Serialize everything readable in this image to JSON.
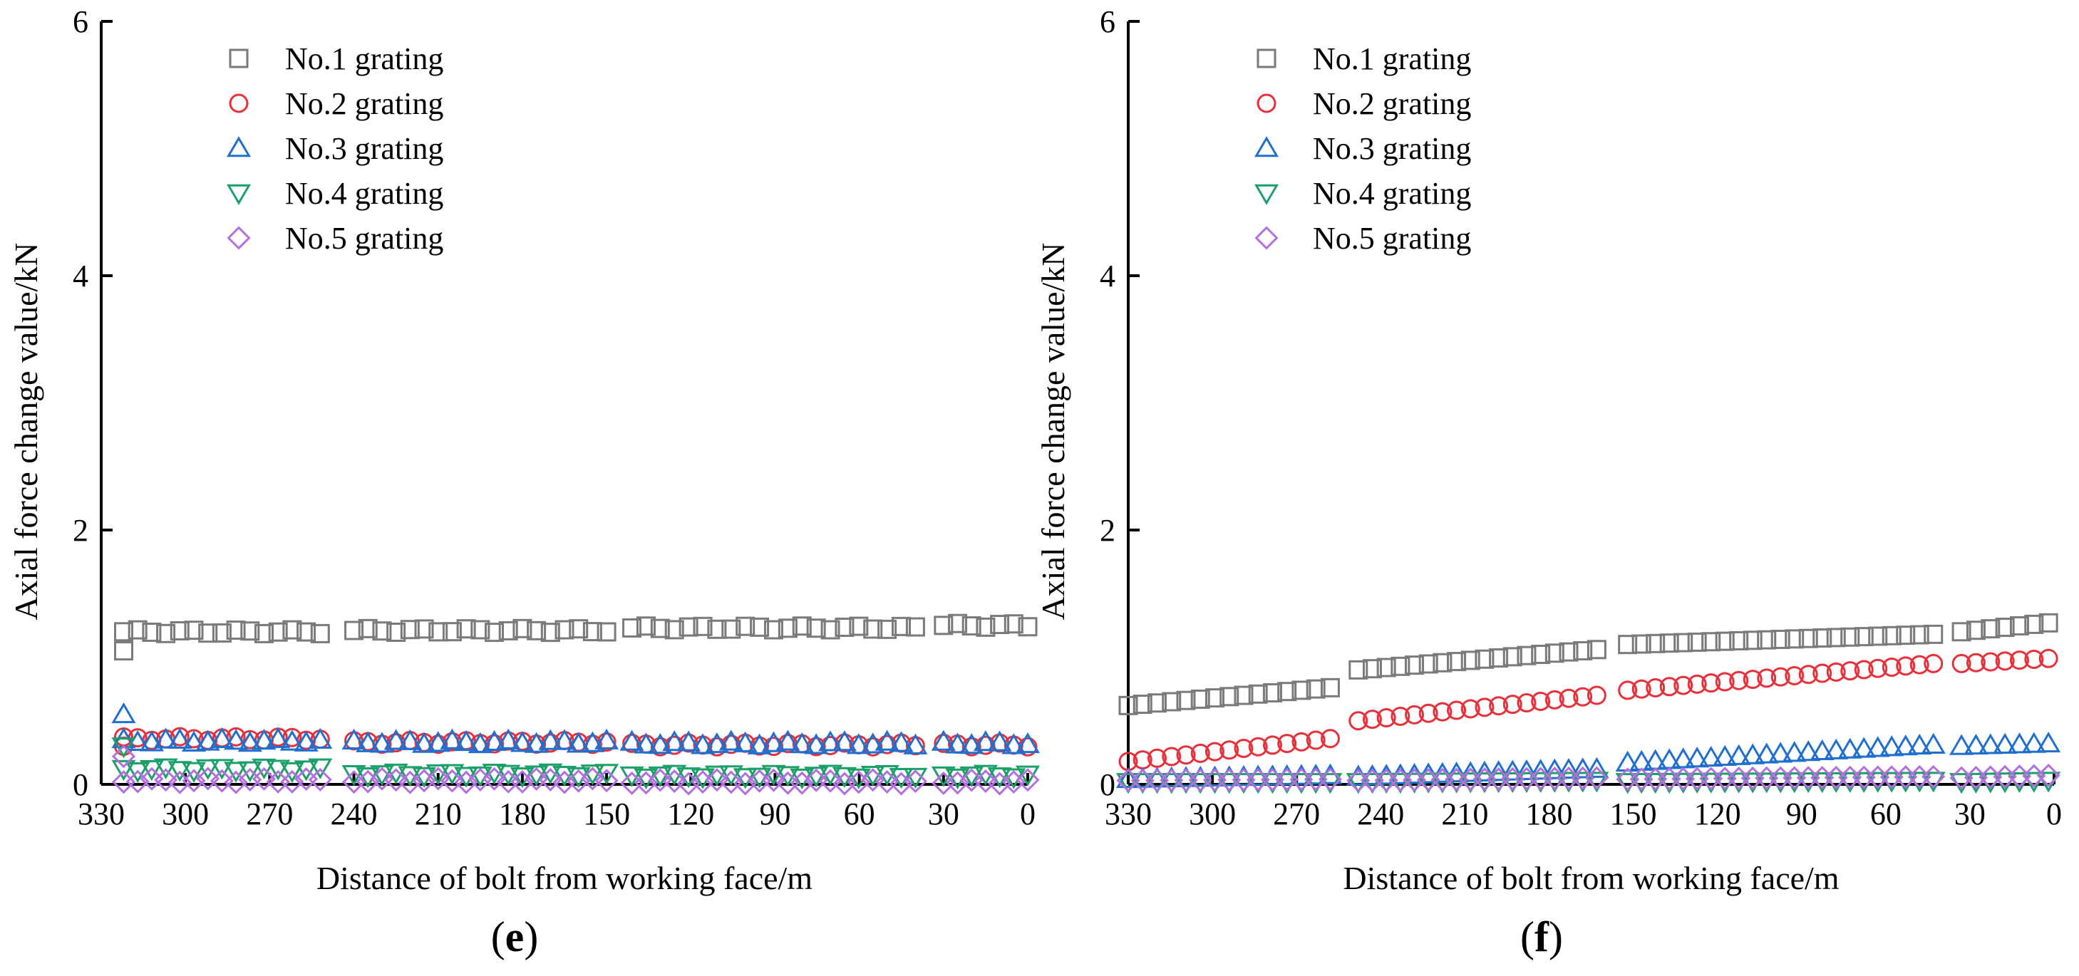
{
  "figure": {
    "panels": [
      {
        "id": "e",
        "label_open": "(",
        "label_letter": "e",
        "label_close": ")"
      },
      {
        "id": "f",
        "label_open": "(",
        "label_letter": "f",
        "label_close": ")"
      }
    ]
  },
  "chart_data": [
    {
      "panel": "e",
      "type": "scatter",
      "xlabel": "Distance of bolt from working face/m",
      "ylabel": "Axial force change value/kN",
      "xlim": [
        330,
        0
      ],
      "ylim": [
        0,
        6
      ],
      "x_reversed": true,
      "xticks": [
        330,
        300,
        270,
        240,
        210,
        180,
        150,
        120,
        90,
        60,
        30,
        0
      ],
      "yticks": [
        0,
        2,
        4,
        6
      ],
      "legend_position": "top-left",
      "grid": false,
      "segments": [
        [
          322,
          252
        ],
        [
          240,
          150
        ],
        [
          141,
          40
        ],
        [
          30,
          0
        ]
      ],
      "series": [
        {
          "name": "No.1 grating",
          "marker": "square",
          "color": "#7a7a7a",
          "start_value": 1.05,
          "values": [
            1.2,
            1.21,
            1.23,
            1.25
          ]
        },
        {
          "name": "No.2 grating",
          "marker": "circle",
          "color": "#e8303a",
          "start_value": 0.3,
          "values": [
            0.36,
            0.33,
            0.31,
            0.31
          ]
        },
        {
          "name": "No.3 grating",
          "marker": "triangle-up",
          "color": "#1f6fd0",
          "start_value": 0.55,
          "values": [
            0.34,
            0.33,
            0.32,
            0.32
          ]
        },
        {
          "name": "No.4 grating",
          "marker": "triangle-down",
          "color": "#1aa068",
          "start_value": 0.3,
          "values": [
            0.12,
            0.08,
            0.07,
            0.07
          ]
        },
        {
          "name": "No.5 grating",
          "marker": "diamond",
          "color": "#b36ee0",
          "start_value": 0.22,
          "values": [
            0.03,
            0.03,
            0.02,
            0.02
          ]
        }
      ]
    },
    {
      "panel": "f",
      "type": "scatter",
      "xlabel": "Distance of bolt from working face/m",
      "ylabel": "Axial force change value/kN",
      "xlim": [
        330,
        0
      ],
      "ylim": [
        0,
        6
      ],
      "x_reversed": true,
      "xticks": [
        330,
        300,
        270,
        240,
        210,
        180,
        150,
        120,
        90,
        60,
        30,
        0
      ],
      "yticks": [
        0,
        2,
        4,
        6
      ],
      "legend_position": "top-left",
      "grid": false,
      "segments": [
        [
          330,
          258
        ],
        [
          248,
          163
        ],
        [
          152,
          43
        ],
        [
          33,
          2
        ]
      ],
      "series": [
        {
          "name": "No.1 grating",
          "marker": "square",
          "color": "#7a7a7a",
          "ranges": [
            [
              0.62,
              0.76
            ],
            [
              0.9,
              1.06
            ],
            [
              1.1,
              1.18
            ],
            [
              1.2,
              1.27
            ]
          ]
        },
        {
          "name": "No.2 grating",
          "marker": "circle",
          "color": "#e8303a",
          "ranges": [
            [
              0.18,
              0.36
            ],
            [
              0.5,
              0.7
            ],
            [
              0.74,
              0.95
            ],
            [
              0.95,
              0.99
            ]
          ]
        },
        {
          "name": "No.3 grating",
          "marker": "triangle-up",
          "color": "#1f6fd0",
          "ranges": [
            [
              0.04,
              0.07
            ],
            [
              0.06,
              0.12
            ],
            [
              0.17,
              0.31
            ],
            [
              0.3,
              0.32
            ]
          ]
        },
        {
          "name": "No.4 grating",
          "marker": "triangle-down",
          "color": "#1aa068",
          "ranges": [
            [
              0.02,
              0.02
            ],
            [
              0.02,
              0.03
            ],
            [
              0.02,
              0.03
            ],
            [
              0.02,
              0.03
            ]
          ]
        },
        {
          "name": "No.5 grating",
          "marker": "diamond",
          "color": "#b36ee0",
          "ranges": [
            [
              0.03,
              0.04
            ],
            [
              0.03,
              0.05
            ],
            [
              0.04,
              0.06
            ],
            [
              0.05,
              0.07
            ]
          ]
        }
      ]
    }
  ]
}
